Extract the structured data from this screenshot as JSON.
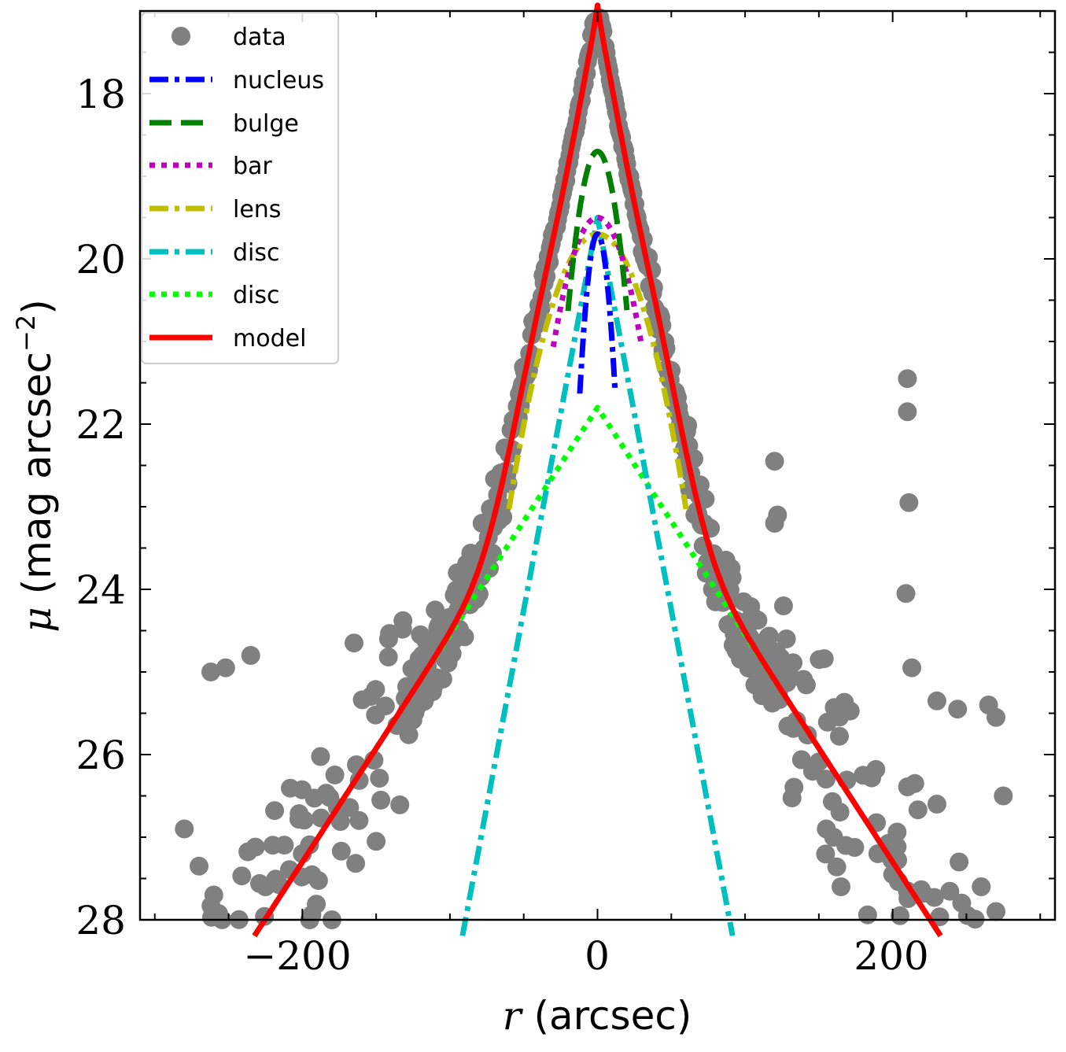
{
  "chart_data": {
    "type": "scatter",
    "title": "",
    "xlabel": {
      "var": "r",
      "unit": "(arcsec)"
    },
    "ylabel": {
      "var": "μ",
      "unit": "(mag arcsec",
      "exp": "−2",
      "close": ")"
    },
    "xlim": [
      -310,
      310
    ],
    "ylim": [
      28,
      17
    ],
    "x_ticks": [
      -200,
      0,
      200
    ],
    "x_tick_labels": [
      "−200",
      "0",
      "200"
    ],
    "y_ticks": [
      18,
      20,
      22,
      24,
      26,
      28
    ],
    "y_tick_labels": [
      "18",
      "20",
      "22",
      "24",
      "26",
      "28"
    ],
    "legend_position": "top-left",
    "series": [
      {
        "name": "data",
        "kind": "scatter",
        "color": "#808080"
      },
      {
        "name": "nucleus",
        "kind": "line",
        "color": "#0000ff",
        "style": "dashdot",
        "peak": 19.7,
        "width": 9
      },
      {
        "name": "bulge",
        "kind": "line",
        "color": "#008000",
        "style": "dashed",
        "peak": 18.7,
        "width": 15
      },
      {
        "name": "bar",
        "kind": "line",
        "color": "#bf00bf",
        "style": "dotted",
        "peak": 19.5,
        "width": 25
      },
      {
        "name": "lens",
        "kind": "line",
        "color": "#bfbf00",
        "style": "dashdot",
        "peak": 19.7,
        "width": 52
      },
      {
        "name": "disc",
        "kind": "line",
        "color": "#00bfbf",
        "style": "dashdot",
        "peak": 19.5,
        "slope": 0.095
      },
      {
        "name": "disc",
        "kind": "line",
        "color": "#00ff00",
        "style": "dotted",
        "peak": 21.8,
        "slope": 0.0275
      },
      {
        "name": "model",
        "kind": "line",
        "color": "#ff0000",
        "style": "solid"
      }
    ],
    "scatter_highlights": [
      [
        120,
        22.45
      ],
      [
        122,
        23.1
      ],
      [
        120,
        23.2
      ],
      [
        126,
        24.2
      ],
      [
        128,
        24.6
      ],
      [
        210,
        21.45
      ],
      [
        210,
        21.85
      ],
      [
        211,
        22.95
      ],
      [
        209,
        24.05
      ],
      [
        213,
        24.95
      ],
      [
        230,
        25.35
      ],
      [
        244,
        25.45
      ],
      [
        265,
        25.4
      ],
      [
        270,
        25.55
      ],
      [
        -262,
        25.0
      ],
      [
        -252,
        24.95
      ],
      [
        -235,
        24.8
      ],
      [
        -165,
        24.65
      ],
      [
        -120,
        24.55
      ],
      [
        -110,
        24.25
      ],
      [
        -85,
        23.75
      ],
      [
        -95,
        23.8
      ],
      [
        -280,
        26.9
      ],
      [
        -270,
        27.35
      ],
      [
        -260,
        27.7
      ],
      [
        -225,
        27.6
      ],
      [
        -200,
        27.2
      ],
      [
        -180,
        28.0
      ],
      [
        -140,
        28.05
      ],
      [
        -195,
        28.0
      ],
      [
        -150,
        27.05
      ],
      [
        165,
        27.6
      ],
      [
        160,
        27.0
      ],
      [
        155,
        26.9
      ],
      [
        245,
        27.3
      ],
      [
        260,
        27.6
      ],
      [
        270,
        27.9
      ],
      [
        280,
        28.1
      ],
      [
        275,
        26.5
      ],
      [
        190,
        27.2
      ],
      [
        200,
        27.45
      ],
      [
        210,
        27.65
      ],
      [
        230,
        26.6
      ],
      [
        215,
        26.35
      ],
      [
        180,
        26.25
      ]
    ]
  }
}
